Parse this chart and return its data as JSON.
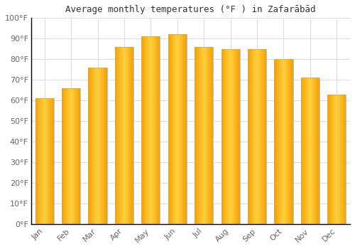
{
  "title": "Average monthly temperatures (°F ) in Zafarābād",
  "months": [
    "Jan",
    "Feb",
    "Mar",
    "Apr",
    "May",
    "Jun",
    "Jul",
    "Aug",
    "Sep",
    "Oct",
    "Nov",
    "Dec"
  ],
  "values": [
    61,
    66,
    76,
    86,
    91,
    92,
    86,
    85,
    85,
    80,
    71,
    63
  ],
  "bar_color_center": "#FFB300",
  "bar_color_edge": "#F5A100",
  "bar_border_color": "#AAAAAA",
  "background_color": "#FFFFFF",
  "grid_color": "#DDDDDD",
  "text_color": "#666666",
  "title_color": "#333333",
  "axis_color": "#000000",
  "ylim": [
    0,
    100
  ],
  "ytick_step": 10,
  "figsize": [
    5.0,
    3.5
  ],
  "dpi": 100,
  "bar_width": 0.7
}
